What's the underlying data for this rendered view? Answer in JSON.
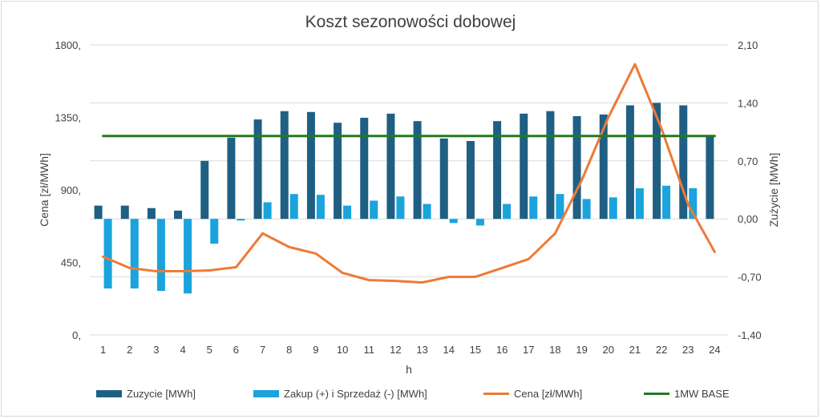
{
  "chart_data": {
    "type": "bar",
    "title": "Koszt sezonowości dobowej",
    "xlabel": "h",
    "ylabel_left": "Cena [zł/MWh]",
    "ylabel_right": "Zużycie [MWh]",
    "x": [
      1,
      2,
      3,
      4,
      5,
      6,
      7,
      8,
      9,
      10,
      11,
      12,
      13,
      14,
      15,
      16,
      17,
      18,
      19,
      20,
      21,
      22,
      23,
      24
    ],
    "left_axis": {
      "min": 0,
      "max": 1800,
      "ticks": [
        "1800,",
        "1350,",
        "900,",
        "450,",
        "0,"
      ],
      "tick_values": [
        1800,
        1350,
        900,
        450,
        0
      ]
    },
    "right_axis": {
      "min": -1.4,
      "max": 2.1,
      "ticks": [
        "2,10",
        "1,40",
        "0,70",
        "0,00",
        "-0,70",
        "-1,40"
      ],
      "tick_values": [
        2.1,
        1.4,
        0.7,
        0.0,
        -0.7,
        -1.4
      ]
    },
    "grid": true,
    "legend_position": "bottom",
    "series": [
      {
        "name": "Zuzycie [MWh]",
        "type": "bar",
        "axis": "right",
        "color": "#1f5f84",
        "values": [
          0.16,
          0.16,
          0.13,
          0.1,
          0.7,
          0.98,
          1.2,
          1.3,
          1.29,
          1.16,
          1.22,
          1.27,
          1.18,
          0.97,
          0.94,
          1.18,
          1.27,
          1.3,
          1.24,
          1.26,
          1.37,
          1.4,
          1.37,
          1.0
        ]
      },
      {
        "name": "Zakup (+) i Sprzedaż (-) [MWh]",
        "type": "bar",
        "axis": "right",
        "color": "#1aa3dc",
        "values": [
          -0.84,
          -0.84,
          -0.87,
          -0.9,
          -0.3,
          -0.02,
          0.2,
          0.3,
          0.29,
          0.16,
          0.22,
          0.27,
          0.18,
          -0.05,
          -0.08,
          0.18,
          0.27,
          0.3,
          0.24,
          0.26,
          0.37,
          0.4,
          0.37,
          0.0
        ]
      },
      {
        "name": "Cena [zł/MWh]",
        "type": "line",
        "axis": "left",
        "color": "#ee7a36",
        "values": [
          485,
          415,
          395,
          395,
          400,
          420,
          630,
          545,
          505,
          385,
          340,
          335,
          325,
          360,
          360,
          415,
          470,
          630,
          960,
          1350,
          1680,
          1280,
          810,
          515
        ]
      },
      {
        "name": "1MW BASE",
        "type": "line",
        "axis": "right",
        "color": "#217a21",
        "values": [
          1,
          1,
          1,
          1,
          1,
          1,
          1,
          1,
          1,
          1,
          1,
          1,
          1,
          1,
          1,
          1,
          1,
          1,
          1,
          1,
          1,
          1,
          1,
          1
        ]
      }
    ]
  }
}
